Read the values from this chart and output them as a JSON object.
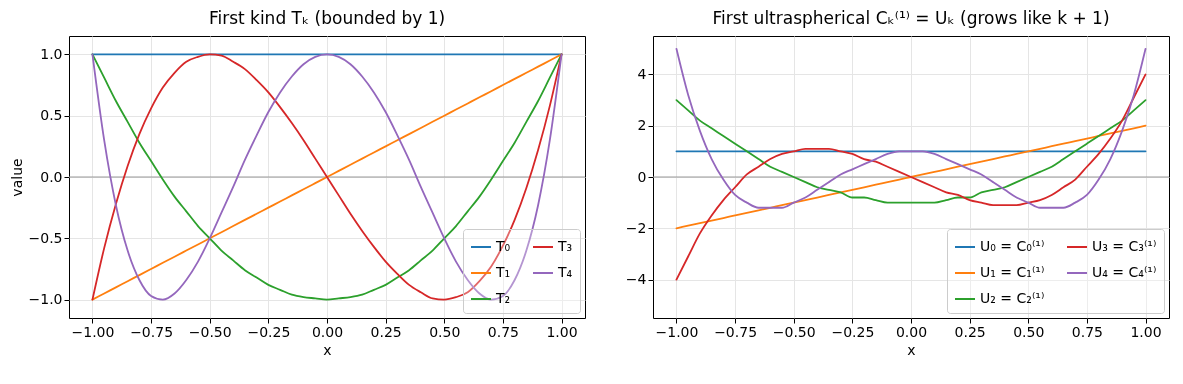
{
  "chart_data": [
    {
      "type": "line",
      "title": "First kind Tₖ (bounded by 1)",
      "xlabel": "x",
      "ylabel": "value",
      "x": [
        -1,
        -0.95,
        -0.9,
        -0.85,
        -0.8,
        -0.75,
        -0.7,
        -0.65,
        -0.6,
        -0.55,
        -0.5,
        -0.45,
        -0.4,
        -0.35,
        -0.3,
        -0.25,
        -0.2,
        -0.15,
        -0.1,
        -0.05,
        0,
        0.05,
        0.1,
        0.15,
        0.2,
        0.25,
        0.3,
        0.35,
        0.4,
        0.45,
        0.5,
        0.55,
        0.6,
        0.65,
        0.7,
        0.75,
        0.8,
        0.85,
        0.9,
        0.95,
        1
      ],
      "series": [
        {
          "name": "T₀",
          "color": "#1f77b4",
          "values": [
            1,
            1,
            1,
            1,
            1,
            1,
            1,
            1,
            1,
            1,
            1,
            1,
            1,
            1,
            1,
            1,
            1,
            1,
            1,
            1,
            1,
            1,
            1,
            1,
            1,
            1,
            1,
            1,
            1,
            1,
            1,
            1,
            1,
            1,
            1,
            1,
            1,
            1,
            1,
            1,
            1
          ]
        },
        {
          "name": "T₁",
          "color": "#ff7f0e",
          "values": [
            -1,
            -0.95,
            -0.9,
            -0.85,
            -0.8,
            -0.75,
            -0.7,
            -0.65,
            -0.6,
            -0.55,
            -0.5,
            -0.45,
            -0.4,
            -0.35,
            -0.3,
            -0.25,
            -0.2,
            -0.15,
            -0.1,
            -0.05,
            0,
            0.05,
            0.1,
            0.15,
            0.2,
            0.25,
            0.3,
            0.35,
            0.4,
            0.45,
            0.5,
            0.55,
            0.6,
            0.65,
            0.7,
            0.75,
            0.8,
            0.85,
            0.9,
            0.95,
            1
          ]
        },
        {
          "name": "T₂",
          "color": "#2ca02c",
          "values": [
            1,
            0.81,
            0.62,
            0.45,
            0.28,
            0.13,
            -0.02,
            -0.16,
            -0.28,
            -0.4,
            -0.5,
            -0.6,
            -0.68,
            -0.76,
            -0.82,
            -0.88,
            -0.92,
            -0.96,
            -0.98,
            -0.99,
            -1,
            -0.99,
            -0.98,
            -0.96,
            -0.92,
            -0.88,
            -0.82,
            -0.76,
            -0.68,
            -0.6,
            -0.5,
            -0.4,
            -0.28,
            -0.16,
            -0.02,
            0.13,
            0.28,
            0.45,
            0.62,
            0.81,
            1
          ]
        },
        {
          "name": "T₃",
          "color": "#d62728",
          "values": [
            -1,
            -0.58,
            -0.22,
            0.09,
            0.35,
            0.56,
            0.73,
            0.85,
            0.94,
            0.98,
            1,
            0.99,
            0.94,
            0.88,
            0.79,
            0.69,
            0.57,
            0.44,
            0.3,
            0.15,
            0,
            -0.15,
            -0.3,
            -0.44,
            -0.57,
            -0.69,
            -0.79,
            -0.88,
            -0.94,
            -0.99,
            -1,
            -0.98,
            -0.94,
            -0.85,
            -0.73,
            -0.56,
            -0.35,
            -0.09,
            0.22,
            0.58,
            1
          ]
        },
        {
          "name": "T₄",
          "color": "#9467bd",
          "values": [
            1,
            0.3,
            -0.23,
            -0.6,
            -0.84,
            -0.97,
            -1,
            -0.95,
            -0.84,
            -0.69,
            -0.5,
            -0.29,
            -0.08,
            0.14,
            0.34,
            0.53,
            0.69,
            0.82,
            0.92,
            0.98,
            1,
            0.98,
            0.92,
            0.82,
            0.69,
            0.53,
            0.34,
            0.14,
            -0.08,
            -0.29,
            -0.5,
            -0.69,
            -0.84,
            -0.95,
            -1,
            -0.97,
            -0.84,
            -0.6,
            -0.23,
            0.3,
            1
          ]
        }
      ],
      "xlim": [
        -1.1,
        1.1
      ],
      "ylim": [
        -1.15,
        1.15
      ],
      "xticks": [
        {
          "value": -1,
          "label": "−1.00"
        },
        {
          "value": -0.75,
          "label": "−0.75"
        },
        {
          "value": -0.5,
          "label": "−0.50"
        },
        {
          "value": -0.25,
          "label": "−0.25"
        },
        {
          "value": 0,
          "label": "0.00"
        },
        {
          "value": 0.25,
          "label": "0.25"
        },
        {
          "value": 0.5,
          "label": "0.50"
        },
        {
          "value": 0.75,
          "label": "0.75"
        },
        {
          "value": 1,
          "label": "1.00"
        }
      ],
      "yticks": [
        {
          "value": -1,
          "label": "−1.0"
        },
        {
          "value": -0.5,
          "label": "−0.5"
        },
        {
          "value": 0,
          "label": "0.0"
        },
        {
          "value": 0.5,
          "label": "0.5"
        },
        {
          "value": 1,
          "label": "1.0"
        }
      ],
      "ref_lines": [
        {
          "axis": "y",
          "value": 0,
          "color": "#999999"
        }
      ],
      "grid": true,
      "legend": "bottom right"
    },
    {
      "type": "line",
      "title": "First ultraspherical Cₖ⁽¹⁾ = Uₖ (grows like k + 1)",
      "xlabel": "x",
      "x": [
        -1,
        -0.95,
        -0.9,
        -0.85,
        -0.8,
        -0.75,
        -0.7,
        -0.65,
        -0.6,
        -0.55,
        -0.5,
        -0.45,
        -0.4,
        -0.35,
        -0.3,
        -0.25,
        -0.2,
        -0.15,
        -0.1,
        -0.05,
        0,
        0.05,
        0.1,
        0.15,
        0.2,
        0.25,
        0.3,
        0.35,
        0.4,
        0.45,
        0.5,
        0.55,
        0.6,
        0.65,
        0.7,
        0.75,
        0.8,
        0.85,
        0.9,
        0.95,
        1
      ],
      "series": [
        {
          "name": "U₀ = C₀⁽¹⁾",
          "color": "#1f77b4",
          "values": [
            1,
            1,
            1,
            1,
            1,
            1,
            1,
            1,
            1,
            1,
            1,
            1,
            1,
            1,
            1,
            1,
            1,
            1,
            1,
            1,
            1,
            1,
            1,
            1,
            1,
            1,
            1,
            1,
            1,
            1,
            1,
            1,
            1,
            1,
            1,
            1,
            1,
            1,
            1,
            1,
            1
          ]
        },
        {
          "name": "U₁ = C₁⁽¹⁾",
          "color": "#ff7f0e",
          "values": [
            -2,
            -1.9,
            -1.8,
            -1.7,
            -1.6,
            -1.5,
            -1.4,
            -1.3,
            -1.2,
            -1.1,
            -1,
            -0.9,
            -0.8,
            -0.7,
            -0.6,
            -0.5,
            -0.4,
            -0.3,
            -0.2,
            -0.1,
            0,
            0.1,
            0.2,
            0.3,
            0.4,
            0.5,
            0.6,
            0.7,
            0.8,
            0.9,
            1,
            1.1,
            1.2,
            1.3,
            1.4,
            1.5,
            1.6,
            1.7,
            1.8,
            1.9,
            2
          ]
        },
        {
          "name": "U₂ = C₂⁽¹⁾",
          "color": "#2ca02c",
          "values": [
            3,
            2.6,
            2.2,
            1.9,
            1.6,
            1.3,
            1,
            0.7,
            0.4,
            0.2,
            0,
            -0.2,
            -0.4,
            -0.5,
            -0.6,
            -0.8,
            -0.8,
            -0.9,
            -1,
            -1,
            -1,
            -1,
            -1,
            -0.9,
            -0.8,
            -0.8,
            -0.6,
            -0.5,
            -0.4,
            -0.2,
            0,
            0.2,
            0.4,
            0.7,
            1,
            1.3,
            1.6,
            1.9,
            2.2,
            2.6,
            3
          ]
        },
        {
          "name": "U₃ = C₃⁽¹⁾",
          "color": "#d62728",
          "values": [
            -4,
            -3.1,
            -2.2,
            -1.5,
            -0.9,
            -0.4,
            0.1,
            0.4,
            0.7,
            0.9,
            1,
            1.1,
            1.1,
            1.1,
            1,
            0.9,
            0.7,
            0.6,
            0.4,
            0.2,
            0,
            -0.2,
            -0.4,
            -0.6,
            -0.7,
            -0.9,
            -1,
            -1.1,
            -1.1,
            -1.1,
            -1,
            -0.9,
            -0.7,
            -0.4,
            -0.1,
            0.4,
            0.9,
            1.5,
            2.2,
            3.1,
            4
          ]
        },
        {
          "name": "U₄ = C₄⁽¹⁾",
          "color": "#9467bd",
          "values": [
            5,
            3.2,
            1.8,
            0.7,
            -0.1,
            -0.7,
            -1,
            -1.2,
            -1.2,
            -1.2,
            -1,
            -0.8,
            -0.5,
            -0.2,
            0.1,
            0.3,
            0.5,
            0.7,
            0.9,
            1,
            1,
            1,
            0.9,
            0.7,
            0.5,
            0.3,
            0.1,
            -0.2,
            -0.5,
            -0.8,
            -1,
            -1.2,
            -1.2,
            -1.2,
            -1,
            -0.7,
            -0.1,
            0.7,
            1.8,
            3.2,
            5
          ]
        }
      ],
      "xlim": [
        -1.1,
        1.1
      ],
      "ylim": [
        -5.5,
        5.5
      ],
      "xticks": [
        {
          "value": -1,
          "label": "−1.00"
        },
        {
          "value": -0.75,
          "label": "−0.75"
        },
        {
          "value": -0.5,
          "label": "−0.50"
        },
        {
          "value": -0.25,
          "label": "−0.25"
        },
        {
          "value": 0,
          "label": "0.00"
        },
        {
          "value": 0.25,
          "label": "0.25"
        },
        {
          "value": 0.5,
          "label": "0.50"
        },
        {
          "value": 0.75,
          "label": "0.75"
        },
        {
          "value": 1,
          "label": "1.00"
        }
      ],
      "yticks": [
        {
          "value": -4,
          "label": "−4"
        },
        {
          "value": -2,
          "label": "−2"
        },
        0,
        2,
        4
      ],
      "ref_lines": [
        {
          "axis": "y",
          "value": 0,
          "color": "#999999"
        }
      ],
      "grid": true,
      "legend": "bottom right"
    }
  ]
}
